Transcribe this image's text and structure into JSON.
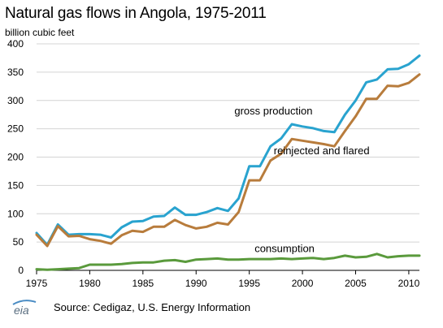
{
  "chart_data": {
    "type": "line",
    "title": "Natural gas flows in Angola, 1975-2011",
    "unit_label": "billion cubic feet",
    "xlim": [
      1975,
      2011
    ],
    "ylim": [
      0,
      400
    ],
    "x_ticks": [
      1975,
      1980,
      1985,
      1990,
      1995,
      2000,
      2005,
      2010
    ],
    "y_ticks": [
      0,
      50,
      100,
      150,
      200,
      250,
      300,
      350,
      400
    ],
    "grid": true,
    "x": [
      1975,
      1976,
      1977,
      1978,
      1979,
      1980,
      1981,
      1982,
      1983,
      1984,
      1985,
      1986,
      1987,
      1988,
      1989,
      1990,
      1991,
      1992,
      1993,
      1994,
      1995,
      1996,
      1997,
      1998,
      1999,
      2000,
      2001,
      2002,
      2003,
      2004,
      2005,
      2006,
      2007,
      2008,
      2009,
      2010,
      2011
    ],
    "series": [
      {
        "name": "gross production",
        "color": "#29a3cf",
        "values": [
          66,
          45,
          81,
          63,
          64,
          64,
          63,
          58,
          76,
          86,
          87,
          95,
          96,
          111,
          98,
          98,
          103,
          110,
          105,
          127,
          184,
          184,
          219,
          233,
          258,
          254,
          251,
          246,
          244,
          275,
          300,
          332,
          337,
          355,
          356,
          364,
          379
        ]
      },
      {
        "name": "reinjected and flared",
        "color": "#b87c3c",
        "values": [
          63,
          43,
          78,
          60,
          61,
          55,
          52,
          47,
          62,
          70,
          68,
          77,
          77,
          89,
          80,
          74,
          77,
          84,
          81,
          103,
          159,
          159,
          194,
          206,
          232,
          229,
          226,
          223,
          219,
          246,
          272,
          303,
          303,
          326,
          325,
          331,
          346
        ]
      },
      {
        "name": "consumption",
        "color": "#5a9a3c",
        "values": [
          2,
          1,
          2,
          3,
          4,
          10,
          10,
          10,
          11,
          13,
          14,
          14,
          17,
          18,
          15,
          19,
          20,
          21,
          19,
          19,
          20,
          20,
          20,
          21,
          20,
          21,
          22,
          20,
          22,
          26,
          23,
          24,
          29,
          23,
          25,
          26,
          26
        ]
      }
    ]
  },
  "source_text": "Source: Cedigaz, U.S. Energy Information",
  "logo_text": "eia"
}
